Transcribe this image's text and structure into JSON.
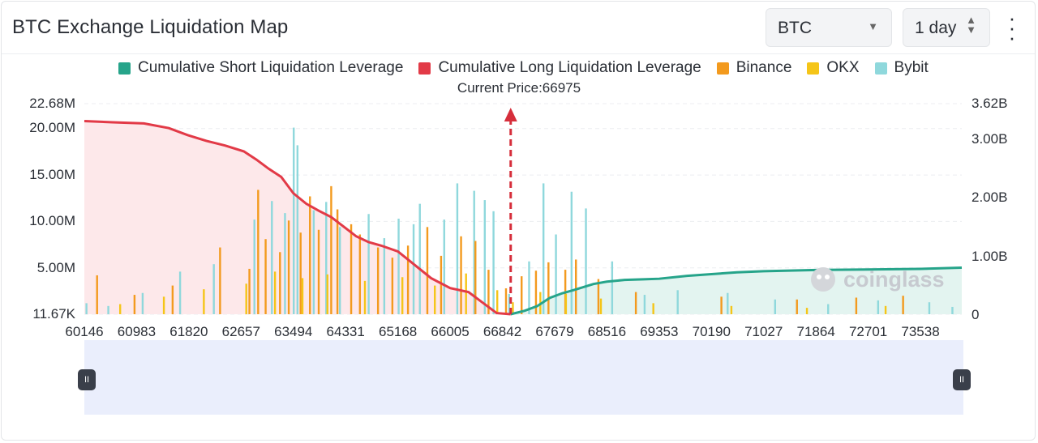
{
  "header": {
    "title": "BTC Exchange Liquidation Map",
    "coin_select": "BTC",
    "range_select": "1 day",
    "more_icon": "more-vertical-icon"
  },
  "watermark": "coinglass",
  "colors": {
    "short": "#26a48a",
    "long": "#e23a47",
    "binance": "#f39a1e",
    "okx": "#f5c518",
    "bybit": "#8fd8dc",
    "long_fill": "#fde8ea",
    "short_fill": "#e3f4f0",
    "arrow": "#d62e3b"
  },
  "chart_data": {
    "type": "bar",
    "title": "BTC Exchange Liquidation Map",
    "current_price_label": "Current Price:66975",
    "current_price": 66975,
    "legend": [
      {
        "name": "Cumulative Short Liquidation Leverage",
        "color": "#26a48a"
      },
      {
        "name": "Cumulative Long Liquidation Leverage",
        "color": "#e23a47"
      },
      {
        "name": "Binance",
        "color": "#f39a1e"
      },
      {
        "name": "OKX",
        "color": "#f5c518"
      },
      {
        "name": "Bybit",
        "color": "#8fd8dc"
      }
    ],
    "x_ticks": [
      "60146",
      "60983",
      "61820",
      "62657",
      "63494",
      "64331",
      "65168",
      "66005",
      "66842",
      "67679",
      "68516",
      "69353",
      "70190",
      "71027",
      "71864",
      "72701",
      "73538"
    ],
    "xlim": [
      60146,
      74200
    ],
    "y_left_ticks": [
      "22.68M",
      "20.00M",
      "15.00M",
      "10.00M",
      "5.00M",
      "11.67K"
    ],
    "y_left_values": [
      22680000,
      20000000,
      15000000,
      10000000,
      5000000,
      11670
    ],
    "y_right_ticks": [
      "3.62B",
      "3.00B",
      "2.00B",
      "1.00B",
      "0"
    ],
    "y_right_values": [
      3620000000,
      3000000000,
      2000000000,
      1000000000,
      0
    ],
    "ylim_left": [
      11670,
      22680000
    ],
    "ylim_right": [
      0,
      3620000000
    ],
    "grid": true,
    "legend_position": "top",
    "series": [
      {
        "name": "Cumulative Long Liquidation Leverage",
        "axis": "right",
        "x": [
          60146,
          60600,
          61100,
          61500,
          61800,
          62100,
          62400,
          62700,
          62900,
          63100,
          63300,
          63494,
          63700,
          63900,
          64100,
          64331,
          64500,
          64700,
          64900,
          65168,
          65400,
          65700,
          66005,
          66300,
          66550,
          66750,
          66975
        ],
        "y": [
          3320000000,
          3300000000,
          3280000000,
          3200000000,
          3080000000,
          2980000000,
          2900000000,
          2800000000,
          2660000000,
          2500000000,
          2360000000,
          2080000000,
          1900000000,
          1780000000,
          1670000000,
          1480000000,
          1340000000,
          1240000000,
          1180000000,
          1080000000,
          880000000,
          620000000,
          450000000,
          380000000,
          180000000,
          20000000,
          0
        ]
      },
      {
        "name": "Cumulative Short Liquidation Leverage",
        "axis": "right",
        "x": [
          66975,
          67200,
          67400,
          67600,
          67800,
          68000,
          68300,
          68516,
          68800,
          69100,
          69353,
          69800,
          70190,
          70600,
          71027,
          71864,
          72701,
          73538,
          74200
        ],
        "y": [
          0,
          60000000,
          140000000,
          280000000,
          360000000,
          420000000,
          520000000,
          560000000,
          590000000,
          600000000,
          610000000,
          660000000,
          690000000,
          720000000,
          740000000,
          760000000,
          770000000,
          780000000,
          800000000
        ]
      },
      {
        "name": "Binance",
        "axis": "left",
        "x": [
          60350,
          60950,
          61560,
          62320,
          62790,
          62930,
          63050,
          63280,
          63420,
          63610,
          63760,
          63900,
          64100,
          64200,
          64420,
          64560,
          64850,
          65080,
          65330,
          65640,
          65860,
          66180,
          66410,
          66620,
          66900,
          67150,
          67380,
          67580,
          67850,
          68020,
          68380,
          68980,
          70350,
          71560,
          72510,
          73260
        ],
        "y": [
          4200000,
          2100000,
          3100000,
          7200000,
          4900000,
          13400000,
          8100000,
          6700000,
          10100000,
          8800000,
          12700000,
          9100000,
          13800000,
          11300000,
          9700000,
          8600000,
          7200000,
          6100000,
          7400000,
          9400000,
          6300000,
          8400000,
          7900000,
          4800000,
          2800000,
          4100000,
          4700000,
          5600000,
          4800000,
          5900000,
          3800000,
          2400000,
          1900000,
          1600000,
          1800000,
          2000000
        ]
      },
      {
        "name": "OKX",
        "axis": "left",
        "x": [
          60720,
          61420,
          62060,
          62740,
          63200,
          63640,
          64040,
          64640,
          65240,
          65760,
          66260,
          66760,
          67010,
          67450,
          67860,
          68420,
          69260,
          70510,
          71720,
          72980
        ],
        "y": [
          1100000,
          1900000,
          2700000,
          3300000,
          4600000,
          3900000,
          4300000,
          3600000,
          4000000,
          3100000,
          4400000,
          2600000,
          1300000,
          2400000,
          2200000,
          1700000,
          1200000,
          900000,
          700000,
          900000
        ]
      },
      {
        "name": "Bybit",
        "axis": "left",
        "x": [
          60180,
          60530,
          61080,
          61680,
          62220,
          62870,
          63150,
          63360,
          63500,
          63560,
          63820,
          64020,
          64240,
          64700,
          64950,
          65180,
          65420,
          65520,
          65910,
          66120,
          66390,
          66560,
          66700,
          66950,
          67270,
          67500,
          67700,
          67950,
          68180,
          68600,
          69120,
          69650,
          70450,
          71210,
          72060,
          72860,
          73680,
          74050
        ],
        "y": [
          1200000,
          900000,
          2300000,
          4600000,
          5400000,
          10200000,
          12200000,
          10900000,
          20100000,
          18200000,
          11200000,
          12100000,
          9400000,
          10800000,
          8200000,
          10300000,
          9700000,
          11900000,
          10200000,
          14100000,
          13300000,
          12300000,
          11100000,
          2200000,
          5700000,
          14100000,
          8600000,
          13200000,
          11400000,
          5700000,
          2100000,
          2600000,
          2300000,
          1600000,
          1100000,
          1500000,
          1300000,
          800000
        ]
      }
    ]
  }
}
